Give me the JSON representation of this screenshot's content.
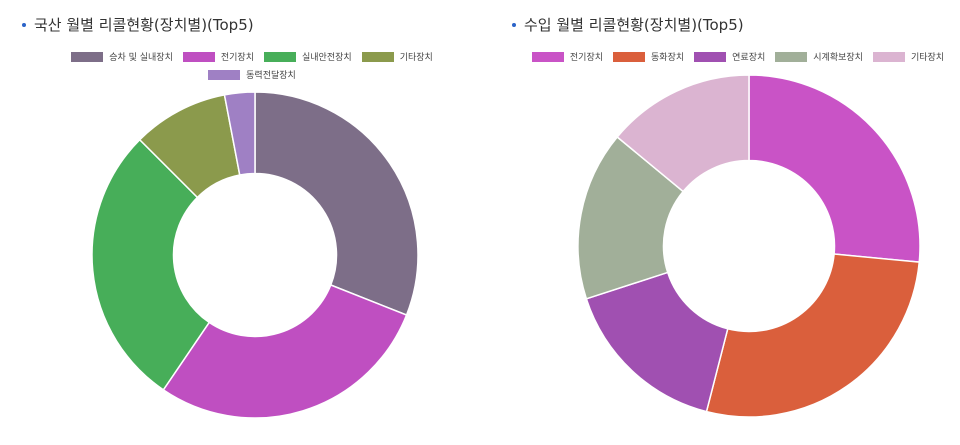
{
  "chart_data": [
    {
      "type": "pie",
      "title": "국산 월별 리콜현황(장치별)(Top5)",
      "legend_position": "top",
      "inner_radius_ratio": 0.5,
      "categories": [
        "승차 및 실내장치",
        "전기장치",
        "실내안전장치",
        "기타장치",
        "동력전달장치"
      ],
      "values": [
        0.31,
        0.285,
        0.28,
        0.095,
        0.03
      ],
      "colors": [
        "#7d6e88",
        "#bf4fc1",
        "#47ae59",
        "#8b9a4c",
        "#9f80c4"
      ]
    },
    {
      "type": "pie",
      "title": "수입 월별 리콜현황(장치별)(Top5)",
      "legend_position": "top",
      "inner_radius_ratio": 0.5,
      "categories": [
        "전기장치",
        "동화장치",
        "연료장치",
        "시계확보장치",
        "기타장치"
      ],
      "values": [
        0.265,
        0.275,
        0.16,
        0.16,
        0.14
      ],
      "colors": [
        "#c953c6",
        "#da5f3c",
        "#a050b1",
        "#a1af99",
        "#dbb4d1"
      ]
    }
  ],
  "icons": {
    "title_bullet": "bullet-dot-icon"
  }
}
